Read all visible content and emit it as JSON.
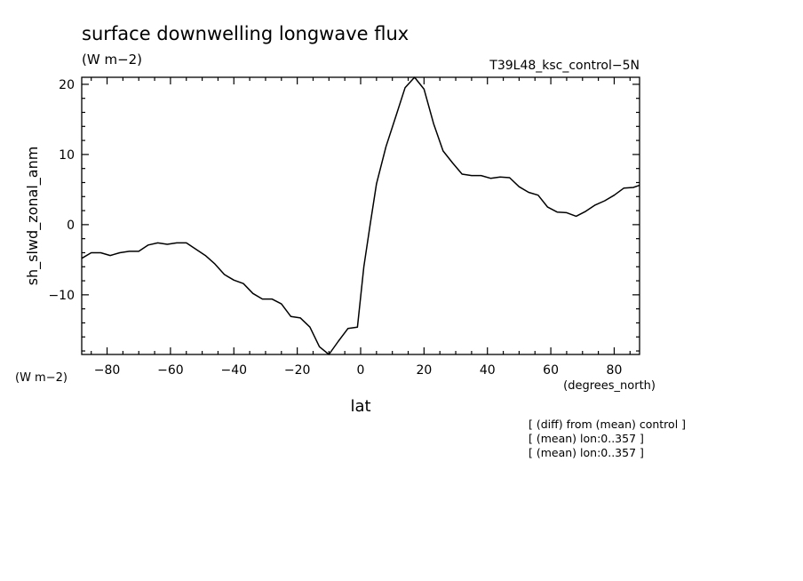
{
  "title": "surface downwelling longwave flux",
  "units": "(W m−2)",
  "run_label": "T39L48_ksc_control−5N",
  "corner_units": "(W m−2)",
  "x_units": "(degrees_north)",
  "xlabel": "lat",
  "ylabel": "sh_slwd_zonal_anm",
  "notes": [
    "[ (diff) from (mean) control ]",
    "[ (mean) lon:0..357 ]",
    "[ (mean) lon:0..357 ]"
  ],
  "chart_data": {
    "type": "line",
    "title": "surface downwelling longwave flux",
    "xlabel": "lat",
    "ylabel": "sh_slwd_zonal_anm",
    "xlim": [
      -88,
      88
    ],
    "ylim": [
      -18.5,
      21
    ],
    "grid": false,
    "x_ticks": [
      -80,
      -60,
      -40,
      -20,
      0,
      20,
      40,
      60,
      80
    ],
    "y_ticks": [
      -10,
      0,
      10,
      20
    ],
    "x": [
      -88,
      -85,
      -82,
      -79,
      -76,
      -73,
      -70,
      -67,
      -64,
      -61,
      -58,
      -55,
      -52,
      -49,
      -46,
      -43,
      -40,
      -37,
      -34,
      -31,
      -28,
      -25,
      -22,
      -19,
      -16,
      -13,
      -10,
      -7,
      -4,
      -1,
      1,
      3,
      5,
      8,
      11,
      14,
      17,
      20,
      23,
      26,
      29,
      32,
      35,
      38,
      41,
      44,
      47,
      50,
      53,
      56,
      59,
      62,
      65,
      68,
      71,
      74,
      77,
      80,
      83,
      86,
      88
    ],
    "values": [
      -4.8,
      -4.0,
      -4.0,
      -4.4,
      -4.0,
      -3.8,
      -3.8,
      -2.9,
      -2.6,
      -2.8,
      -2.6,
      -2.6,
      -3.5,
      -4.4,
      -5.6,
      -7.1,
      -7.9,
      -8.4,
      -9.8,
      -10.6,
      -10.6,
      -11.3,
      -13.1,
      -13.3,
      -14.6,
      -17.4,
      -18.5,
      -16.6,
      -14.8,
      -14.6,
      -6.0,
      0.0,
      5.8,
      11.1,
      15.3,
      19.5,
      21.0,
      19.3,
      14.4,
      10.5,
      8.8,
      7.2,
      7.0,
      7.0,
      6.6,
      6.8,
      6.7,
      5.4,
      4.6,
      4.2,
      2.5,
      1.8,
      1.7,
      1.2,
      1.9,
      2.8,
      3.4,
      4.2,
      5.2,
      5.3,
      5.6
    ]
  }
}
